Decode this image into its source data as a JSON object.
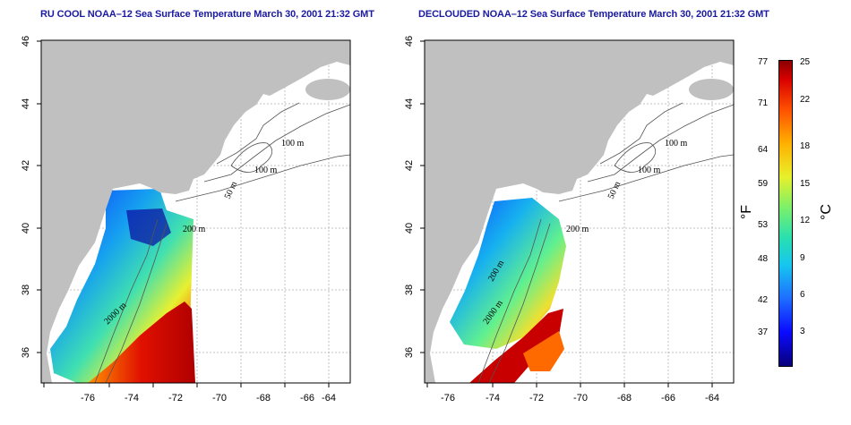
{
  "titles": {
    "left": "RU COOL NOAA–12 Sea Surface Temperature March 30, 2001 21:32 GMT",
    "right": "DECLOUDED NOAA–12 Sea Surface Temperature March 30, 2001 21:32 GMT"
  },
  "axes": {
    "x_ticks": [
      "-76",
      "-74",
      "-72",
      "-70",
      "-68",
      "-66",
      "-64"
    ],
    "y_ticks": [
      "36",
      "38",
      "40",
      "42",
      "44",
      "46"
    ]
  },
  "contour_labels": [
    "100 m",
    "100 m",
    "50 m",
    "200 m",
    "2000 m"
  ],
  "contour_labels_right": [
    "100 m",
    "100 m",
    "50 m",
    "200 m",
    "200 m",
    "2000 m"
  ],
  "colorbar": {
    "fahrenheit_label": "°F",
    "celsius_label": "°C",
    "fahrenheit_ticks": [
      "77",
      "71",
      "64",
      "59",
      "53",
      "48",
      "42",
      "37"
    ],
    "celsius_ticks": [
      "25",
      "22",
      "18",
      "15",
      "12",
      "9",
      "6",
      "3"
    ]
  },
  "colors": {
    "land": "#c0c0c0",
    "grid": "#b0b0b0",
    "contour": "#555555",
    "title": "#1a1aa0"
  }
}
